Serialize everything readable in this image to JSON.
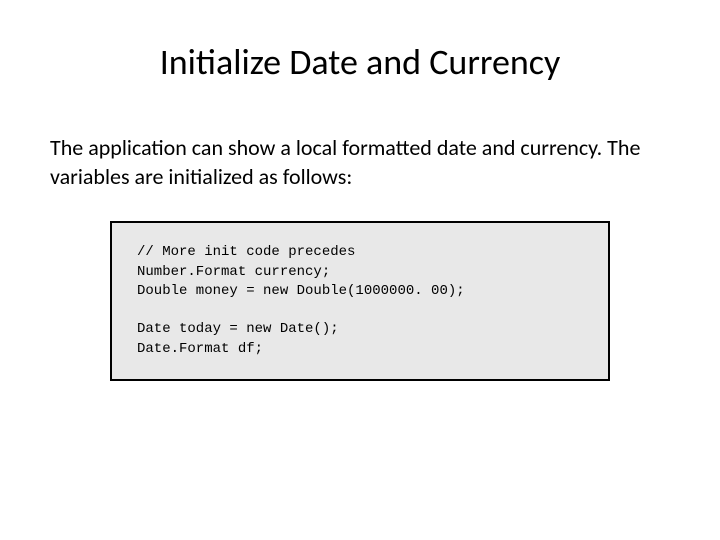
{
  "title": "Initialize Date and Currency",
  "body": "The application can show a local formatted date and currency. The variables are initialized as follows:",
  "code": {
    "lines": [
      "// More init code precedes",
      "Number.Format currency;",
      "Double money = new Double(1000000. 00);",
      "",
      "Date today = new Date();",
      "Date.Format df;"
    ]
  },
  "styling": {
    "background_color": "#ffffff",
    "title_fontsize": 36,
    "body_fontsize": 22,
    "code_fontsize": 14,
    "code_bg": "#e8e8e8",
    "code_border": "#000000",
    "code_font": "Courier New",
    "body_font": "Calibri"
  }
}
